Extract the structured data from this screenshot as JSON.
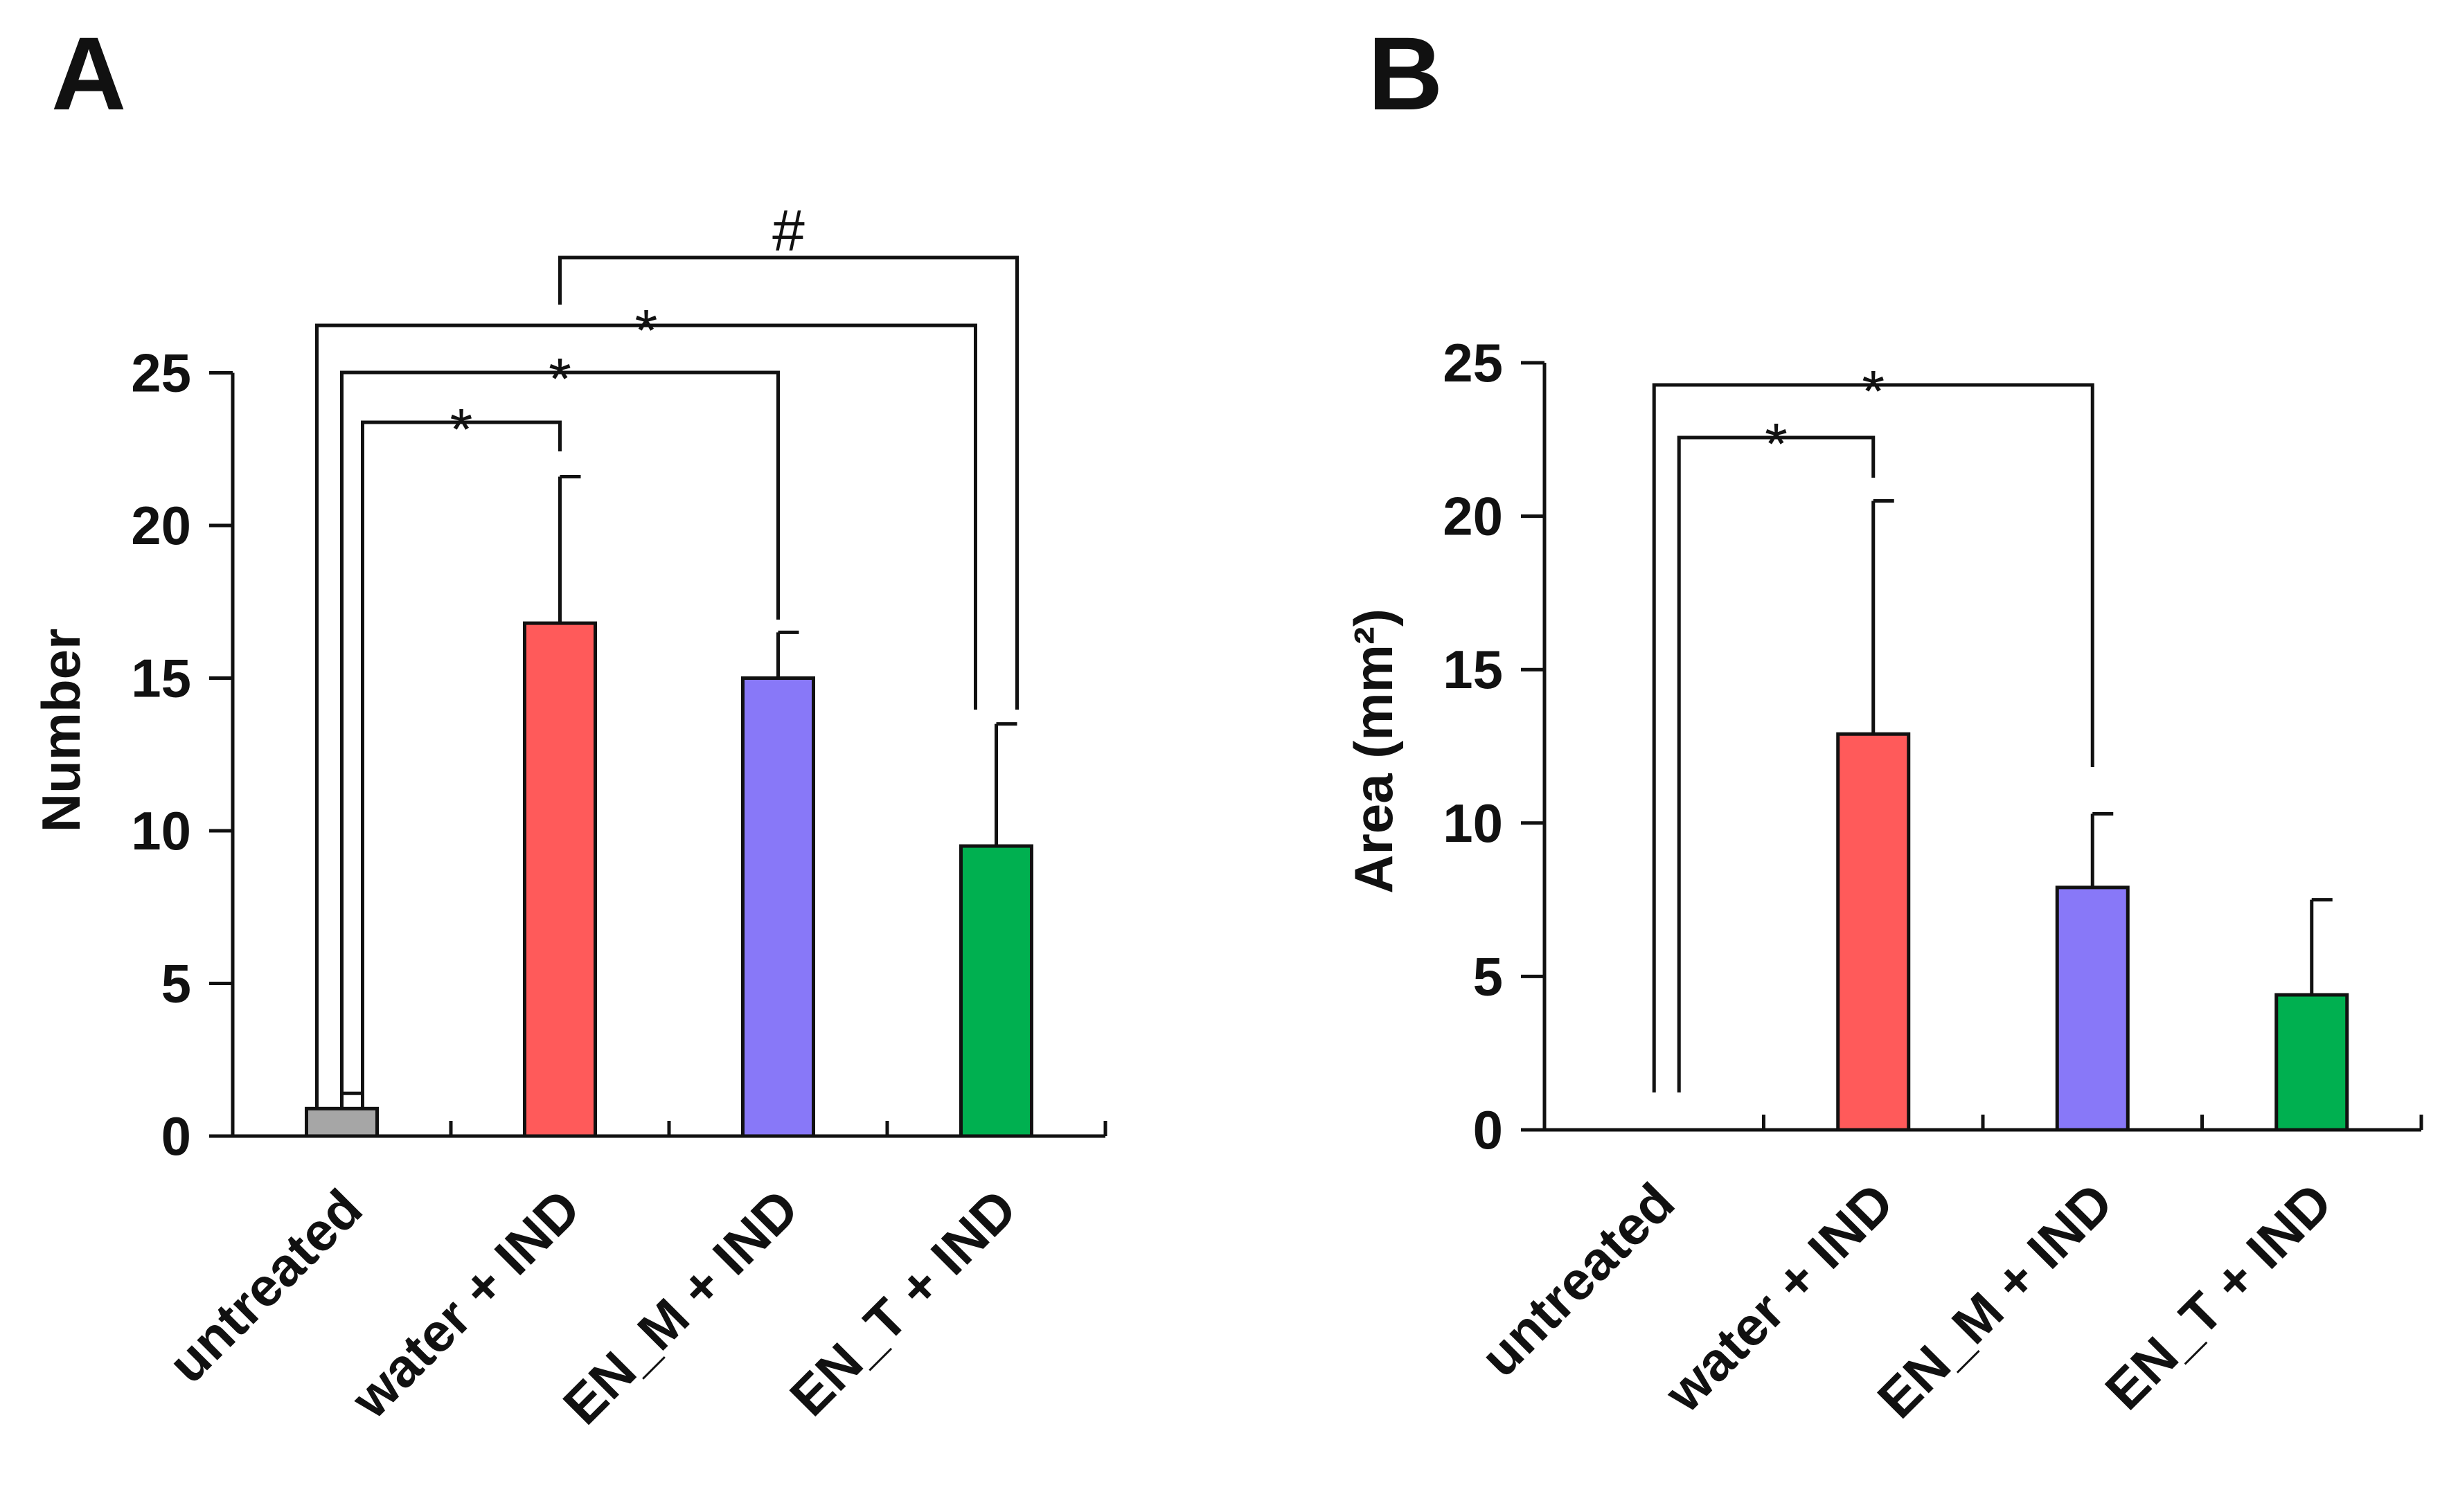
{
  "chart_data": [
    {
      "type": "bar",
      "panel": "A",
      "title": "",
      "xlabel": "",
      "ylabel": "Number",
      "ylim": [
        0,
        25
      ],
      "yticks": [
        "0",
        "5",
        "10",
        "15",
        "20",
        "25"
      ],
      "categories": [
        "untreated",
        "water + IND",
        "EN_M + IND",
        "EN_T + IND"
      ],
      "values": [
        0.9,
        16.8,
        15.0,
        9.5
      ],
      "errors": [
        0.5,
        4.8,
        1.5,
        4.0
      ],
      "colors": [
        "#a6a6a6",
        "#ff5a5a",
        "#8878f8",
        "#00b050"
      ],
      "significance": [
        {
          "from": "untreated",
          "to": "water + IND",
          "symbol": "*"
        },
        {
          "from": "untreated",
          "to": "EN_M + IND",
          "symbol": "*"
        },
        {
          "from": "untreated",
          "to": "EN_T + IND",
          "symbol": "*"
        },
        {
          "from": "water + IND",
          "to": "EN_T + IND",
          "symbol": "#"
        }
      ]
    },
    {
      "type": "bar",
      "panel": "B",
      "title": "",
      "xlabel": "",
      "ylabel": "Area (mm²)",
      "ylim": [
        0,
        25
      ],
      "yticks": [
        "0",
        "5",
        "10",
        "15",
        "20",
        "25"
      ],
      "categories": [
        "untreated",
        "water + IND",
        "EN_M + IND",
        "EN_T + IND"
      ],
      "values": [
        0.0,
        12.9,
        7.9,
        4.4
      ],
      "errors": [
        0.0,
        7.6,
        2.4,
        3.1
      ],
      "colors": [
        "#a6a6a6",
        "#ff5a5a",
        "#8878f8",
        "#00b050"
      ],
      "significance": [
        {
          "from": "untreated",
          "to": "water + IND",
          "symbol": "*"
        },
        {
          "from": "untreated",
          "to": "EN_M + IND",
          "symbol": "*"
        }
      ]
    }
  ]
}
